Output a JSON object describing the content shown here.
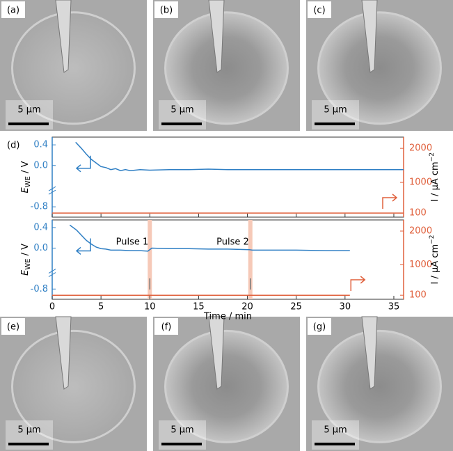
{
  "images": [
    {
      "label": "(a)",
      "scale": "5 µm"
    },
    {
      "label": "(b)",
      "scale": "5 µm"
    },
    {
      "label": "(c)",
      "scale": "5 µm"
    },
    {
      "label": "(e)",
      "scale": "5 µm"
    },
    {
      "label": "(f)",
      "scale": "5 µm"
    },
    {
      "label": "(g)",
      "scale": "5 µm"
    }
  ],
  "chart_data": [
    {
      "type": "line",
      "panel_label": "(d)",
      "ylabel": {
        "main": "E",
        "sub": "WE",
        "unit": " / V"
      },
      "y2label": {
        "main": "I / µA cm",
        "sup": "−2"
      },
      "x": [
        0,
        2.4,
        3,
        3.5,
        4,
        4.5,
        5,
        5.5,
        6,
        6.5,
        7,
        7.5,
        8,
        9,
        10,
        12,
        14,
        16,
        18,
        20,
        24,
        28,
        32,
        36
      ],
      "xlim": [
        0,
        36
      ],
      "xticks": [
        0,
        5,
        10,
        15,
        20,
        25,
        30,
        35
      ],
      "ylim": [
        -1.0,
        0.55
      ],
      "yticks": [
        0.4,
        {
          "value": 0,
          "label": "0.0"
        },
        -0.8
      ],
      "y2lim": [
        -20,
        2330
      ],
      "y2ticks": [
        100,
        1000,
        2000
      ],
      "series": [
        {
          "color": "#2f7fc4",
          "values": [
            null,
            0.45,
            0.33,
            0.22,
            0.12,
            0.05,
            -0.02,
            -0.04,
            -0.08,
            -0.06,
            -0.1,
            -0.08,
            -0.1,
            -0.08,
            -0.09,
            -0.08,
            -0.08,
            -0.07,
            -0.08,
            -0.08,
            -0.08,
            -0.08,
            -0.08,
            -0.08
          ]
        },
        {
          "color": "#e0603c",
          "axis": "y2",
          "values": [
            100,
            100,
            100,
            100,
            100,
            100,
            100,
            100,
            100,
            100,
            100,
            100,
            100,
            100,
            100,
            100,
            100,
            100,
            100,
            100,
            100,
            100,
            100,
            100
          ]
        }
      ]
    },
    {
      "type": "line",
      "ylabel": {
        "main": "E",
        "sub": "WE",
        "unit": " / V"
      },
      "y2label": {
        "main": "I / µA cm",
        "sup": "−2"
      },
      "xlabel": "Time / min",
      "x": [
        0,
        1.8,
        2.5,
        3,
        3.5,
        4,
        4.5,
        5,
        5.5,
        6,
        7,
        8,
        9,
        9.8,
        10.2,
        12,
        14,
        16,
        18,
        20.2,
        20.5,
        22,
        25,
        28,
        30.5
      ],
      "xlim": [
        0,
        36
      ],
      "xticks": [
        0,
        5,
        10,
        15,
        20,
        25,
        30,
        35
      ],
      "ylim": [
        -1.0,
        0.55
      ],
      "yticks": [
        0.4,
        {
          "value": 0,
          "label": "0.0"
        },
        -0.8
      ],
      "y2lim": [
        -20,
        2330
      ],
      "y2ticks": [
        100,
        1000,
        2000
      ],
      "pulses": [
        {
          "label": "Pulse 1",
          "x": 10
        },
        {
          "label": "Pulse 2",
          "x": 20.3
        }
      ],
      "series": [
        {
          "color": "#2f7fc4",
          "values": [
            null,
            0.45,
            0.35,
            0.25,
            0.15,
            0.08,
            0.02,
            -0.01,
            -0.02,
            -0.04,
            -0.04,
            -0.05,
            -0.05,
            -0.06,
            0.0,
            -0.01,
            -0.01,
            -0.02,
            -0.02,
            -0.03,
            -0.04,
            -0.04,
            -0.04,
            -0.05,
            -0.05
          ]
        },
        {
          "color": "#e0603c",
          "axis": "y2",
          "values": [
            100,
            100,
            100,
            100,
            100,
            100,
            100,
            100,
            100,
            100,
            100,
            100,
            100,
            100,
            100,
            100,
            100,
            100,
            100,
            100,
            100,
            100,
            100,
            100,
            100
          ]
        }
      ]
    }
  ]
}
